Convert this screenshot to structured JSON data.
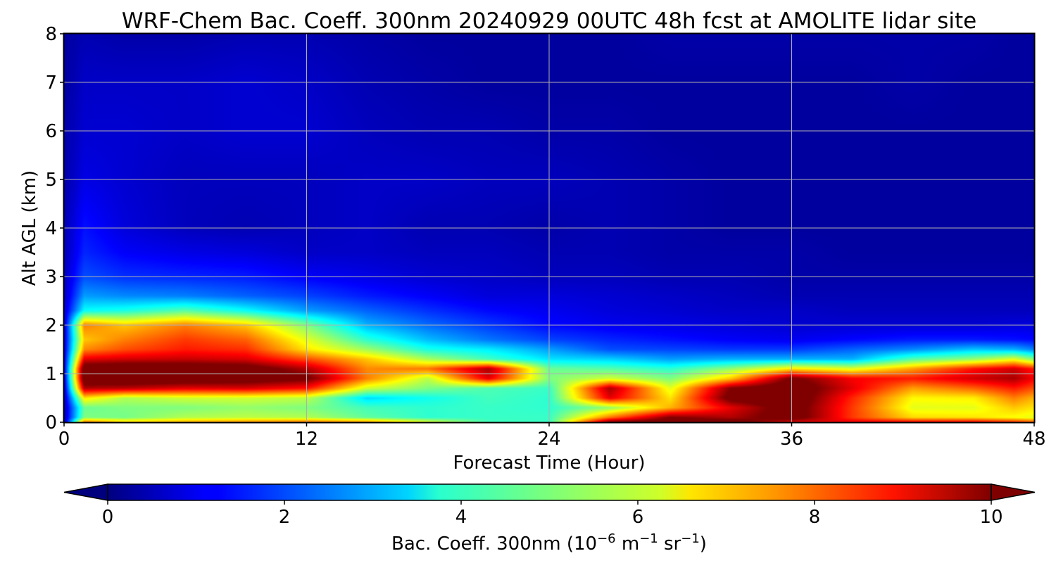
{
  "chart_data": {
    "type": "heatmap",
    "title": "WRF-Chem Bac. Coeff. 300nm  20240929 00UTC 48h fcst at AMOLITE lidar site",
    "xlabel": "Forecast Time (Hour)",
    "ylabel": "Alt AGL (km)",
    "xlim": [
      0,
      48
    ],
    "ylim": [
      0,
      8
    ],
    "xticks": [
      "0",
      "12",
      "24",
      "36",
      "48"
    ],
    "yticks": [
      "0",
      "1",
      "2",
      "3",
      "4",
      "5",
      "6",
      "7",
      "8"
    ],
    "grid": true,
    "colorbar": {
      "label_main": "Bac. Coeff. 300nm  (10",
      "label_exp1": "−6",
      "label_mid": " m",
      "label_exp2": "−1",
      "label_mid2": " sr",
      "label_exp3": "−1",
      "label_end": ")",
      "range": [
        0,
        10
      ],
      "ticks": [
        "0",
        "2",
        "4",
        "6",
        "8",
        "10"
      ],
      "colormap": "jet",
      "extend": "both"
    },
    "time_h": [
      0,
      1,
      3,
      6,
      9,
      12,
      15,
      18,
      21,
      24,
      27,
      30,
      33,
      36,
      39,
      42,
      45,
      47,
      48
    ],
    "alt_km": [
      0,
      0.1,
      0.3,
      0.5,
      0.7,
      0.9,
      1.1,
      1.3,
      1.5,
      1.7,
      2.0,
      2.3,
      2.6,
      3.0,
      3.5,
      4.0,
      5.0,
      6.0,
      7.0,
      8.0
    ],
    "values": [
      [
        0.3,
        7.8,
        6.8,
        7.2,
        7.5,
        7.8,
        7.5,
        6.0,
        4.4,
        4.3,
        10.2,
        10.6,
        10.6,
        9.0,
        9.0,
        9.0,
        9.0,
        8.5,
        8.0
      ],
      [
        0.4,
        5.0,
        4.9,
        5.5,
        5.6,
        5.5,
        4.7,
        4.2,
        4.3,
        4.3,
        7.6,
        10.0,
        9.5,
        10.6,
        8.2,
        6.6,
        6.5,
        6.2,
        6.0
      ],
      [
        0.4,
        4.8,
        5.0,
        5.0,
        5.2,
        5.0,
        4.4,
        4.2,
        4.3,
        4.2,
        5.2,
        7.0,
        9.0,
        10.6,
        8.2,
        6.0,
        6.0,
        6.8,
        6.5
      ],
      [
        0.5,
        6.5,
        5.5,
        5.8,
        5.8,
        5.6,
        3.4,
        3.9,
        4.4,
        4.2,
        9.0,
        6.5,
        10.4,
        10.8,
        8.4,
        6.3,
        6.4,
        7.5,
        7.0
      ],
      [
        0.6,
        9.5,
        9.4,
        9.0,
        9.1,
        8.6,
        5.8,
        5.0,
        4.5,
        4.3,
        9.6,
        6.0,
        10.0,
        10.8,
        9.0,
        7.2,
        7.8,
        8.5,
        8.0
      ],
      [
        0.8,
        10.8,
        10.9,
        10.8,
        10.6,
        10.2,
        7.5,
        5.6,
        9.0,
        5.0,
        5.8,
        5.0,
        6.8,
        10.2,
        8.8,
        8.5,
        9.2,
        9.6,
        8.8
      ],
      [
        0.9,
        10.8,
        10.9,
        10.8,
        10.6,
        9.5,
        7.4,
        7.6,
        9.6,
        4.8,
        4.6,
        4.2,
        5.2,
        6.5,
        6.0,
        7.2,
        8.6,
        9.2,
        8.5
      ],
      [
        0.9,
        9.0,
        9.2,
        9.3,
        9.1,
        8.0,
        6.8,
        5.4,
        4.4,
        3.5,
        3.3,
        2.8,
        3.0,
        3.0,
        3.0,
        4.6,
        5.2,
        6.0,
        5.0
      ],
      [
        0.8,
        7.4,
        8.0,
        8.5,
        8.3,
        6.5,
        5.3,
        4.0,
        3.6,
        2.8,
        2.0,
        1.9,
        1.8,
        1.8,
        2.2,
        2.6,
        3.2,
        3.0,
        2.5
      ],
      [
        0.8,
        6.8,
        7.5,
        8.2,
        7.8,
        6.0,
        4.2,
        3.1,
        2.4,
        1.9,
        1.6,
        1.4,
        1.2,
        1.1,
        1.3,
        1.5,
        1.5,
        1.4,
        1.3
      ],
      [
        0.7,
        7.5,
        6.8,
        7.5,
        6.8,
        5.0,
        3.0,
        2.3,
        1.8,
        1.3,
        1.1,
        1.0,
        0.9,
        0.8,
        0.8,
        0.8,
        0.8,
        0.9,
        0.9
      ],
      [
        0.7,
        3.8,
        4.0,
        4.6,
        3.8,
        2.8,
        2.2,
        1.7,
        1.3,
        1.1,
        0.9,
        0.8,
        0.7,
        0.7,
        0.6,
        0.6,
        0.6,
        0.6,
        0.6
      ],
      [
        0.6,
        2.8,
        2.6,
        2.5,
        2.2,
        1.9,
        1.5,
        1.2,
        0.9,
        0.9,
        0.8,
        0.7,
        0.6,
        0.5,
        0.5,
        0.5,
        0.5,
        0.5,
        0.5
      ],
      [
        0.6,
        2.0,
        1.7,
        1.6,
        1.5,
        1.2,
        1.0,
        0.8,
        0.7,
        0.6,
        0.6,
        0.5,
        0.5,
        0.4,
        0.4,
        0.4,
        0.4,
        0.4,
        0.4
      ],
      [
        0.5,
        1.6,
        1.2,
        1.0,
        0.9,
        0.7,
        0.7,
        0.6,
        0.6,
        0.5,
        0.5,
        0.4,
        0.4,
        0.4,
        0.3,
        0.3,
        0.3,
        0.3,
        0.3
      ],
      [
        0.5,
        1.4,
        0.9,
        0.6,
        0.5,
        0.6,
        0.7,
        0.5,
        0.5,
        0.4,
        0.5,
        0.4,
        0.3,
        0.3,
        0.3,
        0.3,
        0.3,
        0.3,
        0.3
      ],
      [
        0.4,
        1.0,
        0.8,
        0.6,
        0.6,
        0.6,
        0.7,
        0.7,
        0.6,
        0.6,
        0.5,
        0.4,
        0.3,
        0.3,
        0.3,
        0.3,
        0.3,
        0.3,
        0.3
      ],
      [
        0.4,
        0.8,
        0.8,
        0.7,
        0.8,
        0.8,
        0.6,
        0.5,
        0.5,
        0.4,
        0.4,
        0.3,
        0.3,
        0.3,
        0.3,
        0.3,
        0.3,
        0.3,
        0.3
      ],
      [
        0.3,
        0.7,
        0.7,
        0.7,
        0.8,
        0.7,
        0.5,
        0.4,
        0.3,
        0.3,
        0.3,
        0.3,
        0.3,
        0.3,
        0.3,
        0.4,
        0.3,
        0.3,
        0.3
      ],
      [
        0.3,
        0.5,
        0.4,
        0.4,
        0.5,
        0.5,
        0.4,
        0.3,
        0.3,
        0.3,
        0.3,
        0.4,
        0.4,
        0.4,
        0.4,
        0.4,
        0.4,
        0.3,
        0.3
      ]
    ]
  }
}
